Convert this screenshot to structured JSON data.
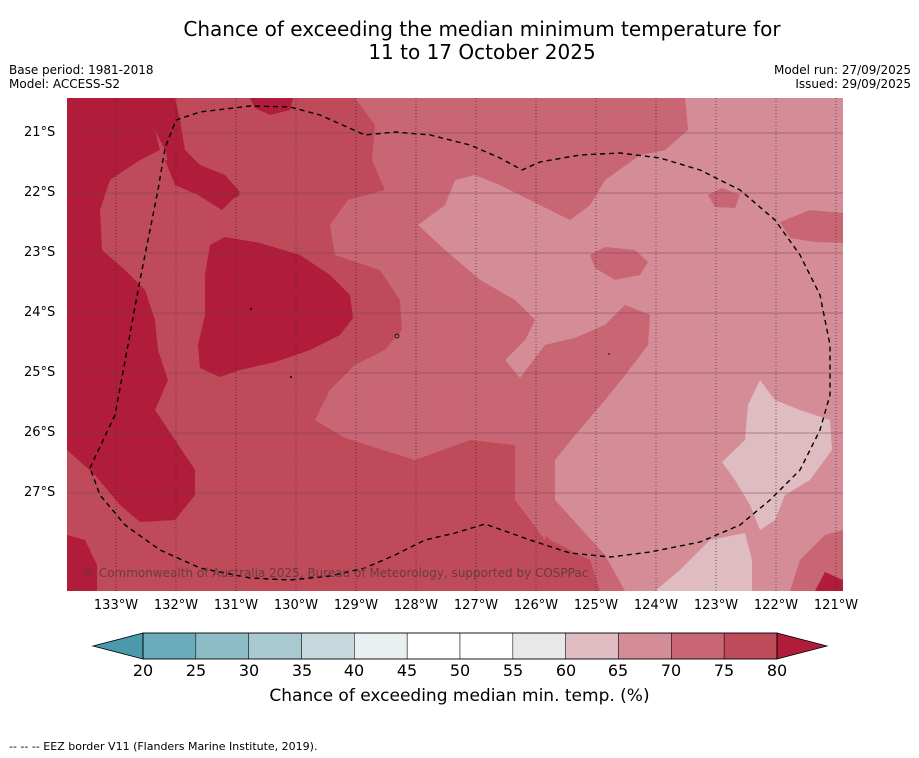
{
  "title": {
    "line1": "Chance of exceeding the median minimum temperature for",
    "line2": "11 to 17 October 2025"
  },
  "meta": {
    "base_period": "Base period: 1981-2018",
    "model": "Model: ACCESS-S2",
    "model_run": "Model run: 27/09/2025",
    "issued": "Issued: 29/09/2025"
  },
  "map": {
    "lat_labels": [
      "21°S",
      "22°S",
      "23°S",
      "24°S",
      "25°S",
      "26°S",
      "27°S"
    ],
    "lon_labels": [
      "133°W",
      "132°W",
      "131°W",
      "130°W",
      "129°W",
      "128°W",
      "127°W",
      "126°W",
      "125°W",
      "124°W",
      "123°W",
      "122°W",
      "121°W"
    ],
    "copyright": "© Commonwealth of Australia 2025, Bureau of Meteorology, supported by COSPPac"
  },
  "colors": {
    "c55_60": "#e8e8e8",
    "c60_65": "#dfbcc1",
    "c65_70": "#d48c96",
    "c70_75": "#c86674",
    "c75_80": "#be4a5a",
    "c80_plus": "#b01c3a"
  },
  "colorbar": {
    "labels": [
      "20",
      "25",
      "30",
      "35",
      "40",
      "45",
      "50",
      "55",
      "60",
      "65",
      "70",
      "75",
      "80"
    ],
    "colors": [
      "#6aacbc",
      "#8dbcc7",
      "#a9c9d0",
      "#c7d9dc",
      "#e9f0f2",
      "#ffffff",
      "#ffffff",
      "#e8e8e8",
      "#dfbcc1",
      "#d48c96",
      "#c86674",
      "#be4a5a"
    ],
    "low_color": "#4a9aac",
    "high_color": "#b01c3a",
    "title": "Chance of exceeding median min. temp. (%)"
  },
  "footnote": "--  --  -- EEZ border V11 (Flanders Marine Institute, 2019)."
}
